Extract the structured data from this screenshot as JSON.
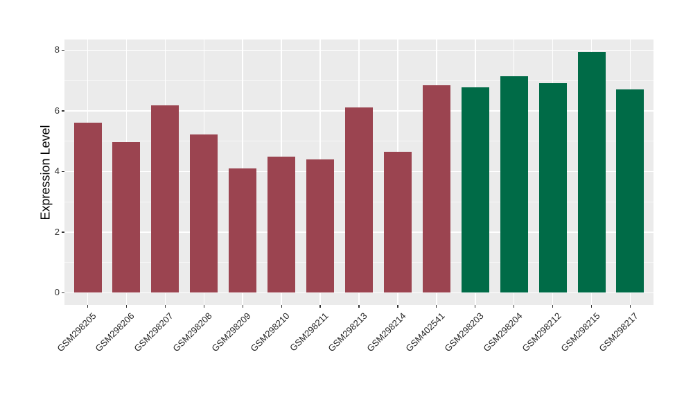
{
  "figure": {
    "background": "#FFFFFF",
    "panel_background": "#EBEBEB",
    "grid_color": "#FFFFFF",
    "tick_color": "#333333",
    "axis_text_color": "#1F1F1F"
  },
  "chart_data": {
    "type": "bar",
    "title": "",
    "xlabel": "",
    "ylabel": "Expression Level",
    "ylim": [
      -0.4,
      8.35
    ],
    "yticks": [
      0,
      2,
      4,
      6,
      8
    ],
    "yminor": [
      1,
      3,
      5,
      7
    ],
    "grid": true,
    "legend_position": "none",
    "categories": [
      "GSM298205",
      "GSM298206",
      "GSM298207",
      "GSM298208",
      "GSM298209",
      "GSM298210",
      "GSM298211",
      "GSM298213",
      "GSM298214",
      "GSM402541",
      "GSM298203",
      "GSM298204",
      "GSM298212",
      "GSM298215",
      "GSM298217"
    ],
    "values": [
      5.6,
      4.98,
      6.19,
      5.21,
      4.1,
      4.48,
      4.39,
      6.1,
      4.64,
      6.85,
      6.78,
      7.14,
      6.92,
      7.95,
      6.7
    ],
    "bar_groups": [
      "maroon",
      "maroon",
      "maroon",
      "maroon",
      "maroon",
      "maroon",
      "maroon",
      "maroon",
      "maroon",
      "maroon",
      "green",
      "green",
      "green",
      "green",
      "green"
    ],
    "group_colors": {
      "maroon": "#9B4450",
      "green": "#006B47"
    }
  }
}
